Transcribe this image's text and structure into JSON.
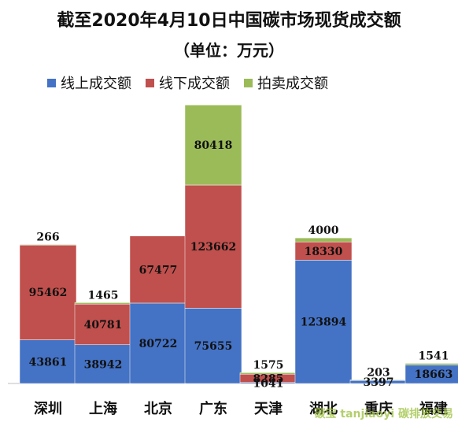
{
  "chart_data": {
    "type": "bar",
    "stacked": true,
    "title": "截至2020年4月10日中国碳市场现货成交额",
    "subtitle": "（单位：万元）",
    "categories": [
      "深圳",
      "上海",
      "北京",
      "广东",
      "天津",
      "湖北",
      "重庆",
      "福建"
    ],
    "series": [
      {
        "name": "线上成交额",
        "color": "#4472c4",
        "values": [
          43861,
          38942,
          80722,
          75655,
          1041,
          123894,
          3397,
          18663
        ]
      },
      {
        "name": "线下成交额",
        "color": "#c0504d",
        "values": [
          95462,
          40781,
          67477,
          123662,
          8285,
          18330,
          0,
          0
        ]
      },
      {
        "name": "拍卖成交额",
        "color": "#9bbb59",
        "values": [
          266,
          1465,
          0,
          80418,
          1575,
          4000,
          203,
          1541
        ]
      }
    ],
    "ylim": [
      0,
      280000
    ],
    "grid": false,
    "legend_position": "top"
  },
  "watermark": "碳宝 tanjiaoyi 碳排放交易"
}
